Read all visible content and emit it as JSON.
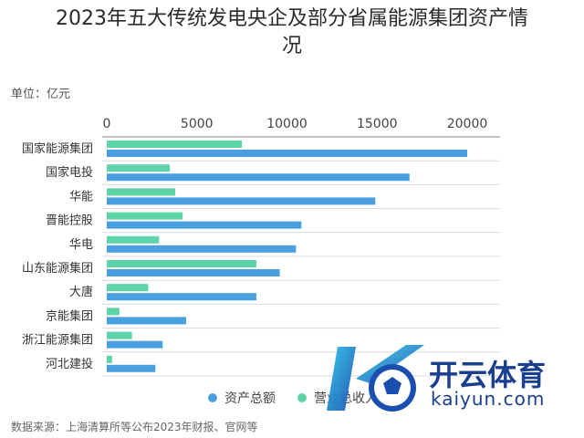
{
  "title_line1": "2023年五大传统发电央企及部分省属能源集团资产情",
  "title_line2": "况",
  "unit": "单位：亿元",
  "source": "数据来源：上海清算所等公布2023年财报、官网等",
  "watermark": {
    "name": "开云体育",
    "domain": "kaiyun.com"
  },
  "colors": {
    "total_assets": "#4a9fe0",
    "revenue": "#5dd3a8"
  },
  "chart_data": {
    "type": "bar",
    "orientation": "horizontal",
    "categories": [
      "国家能源集团",
      "国家电投",
      "华能",
      "晋能控股",
      "华电",
      "山东能源集团",
      "大唐",
      "京能集团",
      "浙江能源集团",
      "河北建投"
    ],
    "series": [
      {
        "name": "营业总收入",
        "values": [
          7500,
          3500,
          3800,
          4200,
          2900,
          8300,
          2300,
          700,
          1400,
          300
        ]
      },
      {
        "name": "资产总额",
        "values": [
          20000,
          16800,
          14900,
          10800,
          10500,
          9600,
          8300,
          4400,
          3100,
          2700
        ]
      }
    ],
    "xticks": [
      0,
      5000,
      10000,
      15000,
      20000
    ],
    "xlim": [
      0,
      20000
    ],
    "legend": [
      "资产总额",
      "营业总收入"
    ],
    "legend_position": "bottom",
    "grid": false
  }
}
